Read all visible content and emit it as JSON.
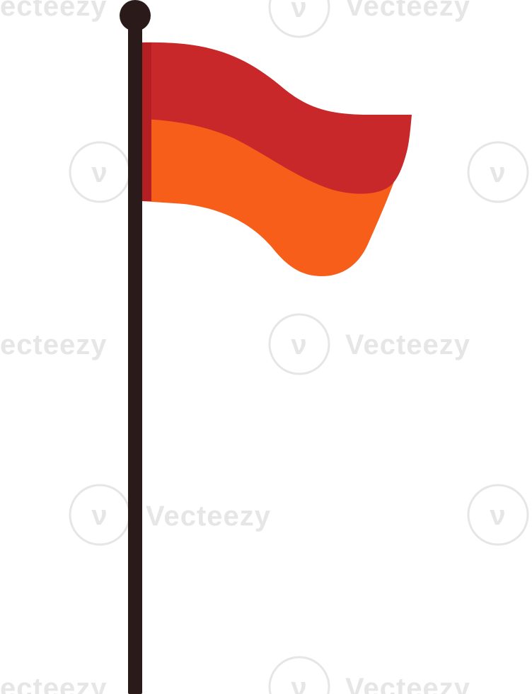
{
  "image": {
    "subject": "flag-on-pole",
    "watermark": {
      "text": "Vecteezy",
      "partial_text": "ecteezy",
      "color": "#e6e6e6"
    },
    "flag": {
      "top_stripe_color": "#c9282b",
      "bottom_stripe_color": "#f65e1a",
      "hoist_edge_color": "#b31f22"
    },
    "pole": {
      "color": "#2a1a1a",
      "finial_color": "#2a1a1a"
    },
    "background_color": "#ffffff"
  }
}
